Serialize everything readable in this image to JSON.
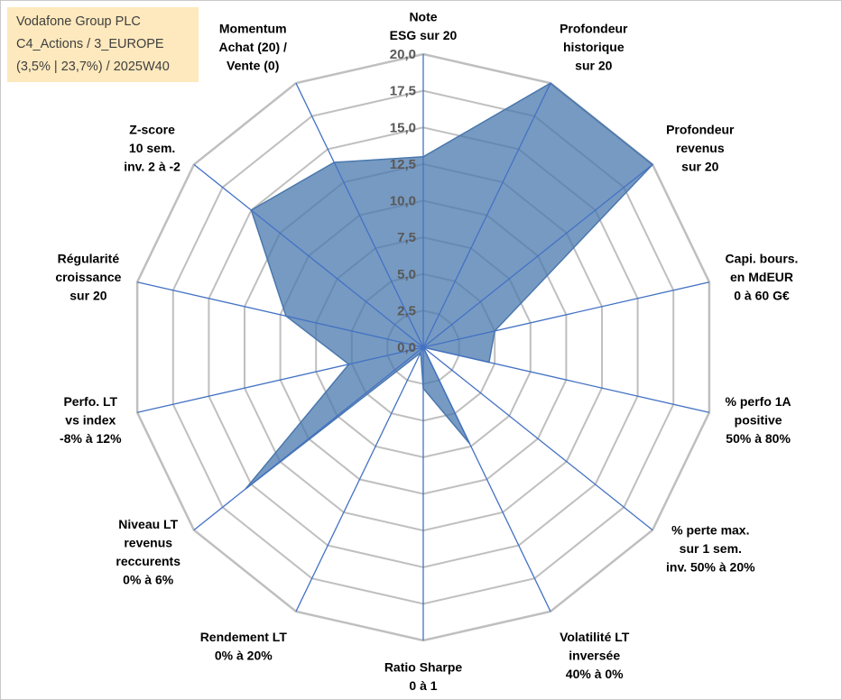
{
  "info_box": {
    "line1": "Vodafone Group PLC",
    "line2": "C4_Actions / 3_EUROPE",
    "line3": "(3,5% | 23,7%) / 2025W40"
  },
  "chart_data": {
    "type": "radar",
    "rmin": 0,
    "rmax": 20,
    "ticks": [
      "0,0",
      "2,5",
      "5,0",
      "7,5",
      "10,0",
      "12,5",
      "15,0",
      "17,5",
      "20,0"
    ],
    "grid": true,
    "series_color": "#4a78ad",
    "grid_color": "#bfbfbf",
    "axis_color": "#4472c4",
    "categories": [
      [
        "Note",
        "ESG sur 20"
      ],
      [
        "Profondeur",
        "historique",
        "sur 20"
      ],
      [
        "Profondeur",
        "revenus",
        "sur 20"
      ],
      [
        "Capi. bours.",
        "en MdEUR",
        "0 à 60 G€"
      ],
      [
        "% perfo 1A",
        "positive",
        "50% à 80%"
      ],
      [
        "% perte max.",
        "sur 1 sem.",
        "inv. 50% à 20%"
      ],
      [
        "Volatilité LT",
        "inversée",
        "40% à 0%"
      ],
      [
        "Ratio Sharpe",
        "0 à 1"
      ],
      [
        "Rendement LT",
        "0% à 20%"
      ],
      [
        "Niveau LT",
        "revenus",
        "reccurents",
        "0% à 6%"
      ],
      [
        "Perfo. LT",
        "vs index",
        "-8% à 12%"
      ],
      [
        "Régularité",
        "croissance",
        "sur 20"
      ],
      [
        "Z-score",
        "10 sem.",
        "inv. 2 à -2"
      ],
      [
        "Momentum",
        "Achat (20) /",
        "Vente (0)"
      ]
    ],
    "values": [
      13.0,
      20.0,
      20.0,
      5.0,
      4.6,
      0.0,
      7.3,
      2.8,
      0.4,
      15.5,
      5.2,
      9.6,
      15.0,
      14.0
    ]
  }
}
